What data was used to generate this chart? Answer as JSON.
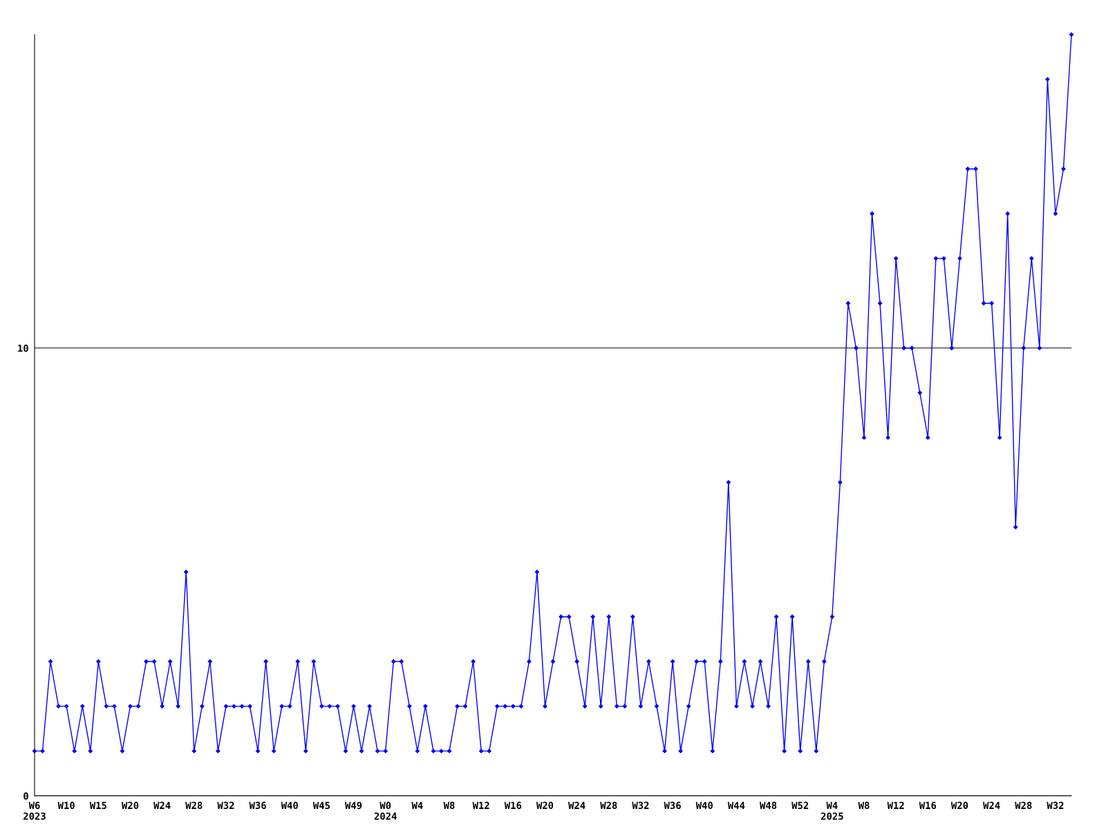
{
  "chart_data": {
    "type": "line",
    "categories": [
      "W6\n2023",
      null,
      null,
      null,
      "W10",
      null,
      null,
      null,
      "W15",
      null,
      null,
      null,
      "W20",
      null,
      null,
      null,
      "W24",
      null,
      null,
      null,
      "W28",
      null,
      null,
      null,
      "W32",
      null,
      null,
      null,
      "W36",
      null,
      null,
      null,
      "W40",
      null,
      null,
      null,
      "W45",
      null,
      null,
      null,
      "W49",
      null,
      null,
      null,
      "W0\n2024",
      null,
      null,
      null,
      "W4",
      null,
      null,
      null,
      "W8",
      null,
      null,
      null,
      "W12",
      null,
      null,
      null,
      "W16",
      null,
      null,
      null,
      "W20",
      null,
      null,
      null,
      "W24",
      null,
      null,
      null,
      "W28",
      null,
      null,
      null,
      "W32",
      null,
      null,
      null,
      "W36",
      null,
      null,
      null,
      "W40",
      null,
      null,
      null,
      "W44",
      null,
      null,
      null,
      "W48",
      null,
      null,
      null,
      "W52",
      null,
      null,
      null,
      "W4\n2025",
      null,
      null,
      null,
      "W8",
      null,
      null,
      null,
      "W12",
      null,
      null,
      null,
      "W16",
      null,
      null,
      null,
      "W20",
      null,
      null,
      null,
      "W24",
      null,
      null,
      null,
      "W28",
      null,
      null,
      null,
      "W32",
      null,
      null
    ],
    "series": [
      {
        "color": "#0000ff",
        "values": [
          1,
          1,
          3,
          2,
          2,
          1,
          2,
          1,
          3,
          2,
          2,
          1,
          2,
          2,
          3,
          3,
          2,
          3,
          2,
          5,
          1,
          2,
          3,
          1,
          2,
          2,
          2,
          2,
          1,
          3,
          1,
          2,
          2,
          3,
          1,
          3,
          2,
          2,
          2,
          1,
          2,
          1,
          2,
          1,
          1,
          3,
          3,
          2,
          1,
          2,
          1,
          1,
          1,
          2,
          2,
          3,
          1,
          1,
          2,
          2,
          2,
          2,
          3,
          5,
          2,
          3,
          4,
          4,
          3,
          2,
          4,
          2,
          4,
          2,
          2,
          4,
          2,
          3,
          2,
          1,
          3,
          1,
          2,
          3,
          3,
          1,
          3,
          7,
          2,
          3,
          2,
          3,
          2,
          4,
          1,
          4,
          1,
          3,
          1,
          3,
          4,
          7,
          11,
          10,
          8,
          13,
          11,
          8,
          12,
          10,
          10,
          9,
          8,
          12,
          12,
          10,
          12,
          14,
          14,
          11,
          11,
          8,
          13,
          6,
          10,
          12,
          10,
          16,
          13,
          14,
          17
        ]
      }
    ],
    "ylim": [
      0,
      17
    ],
    "yticks": [
      0,
      10
    ],
    "grid": "y",
    "marker": "diamond",
    "line_style": "solid"
  }
}
